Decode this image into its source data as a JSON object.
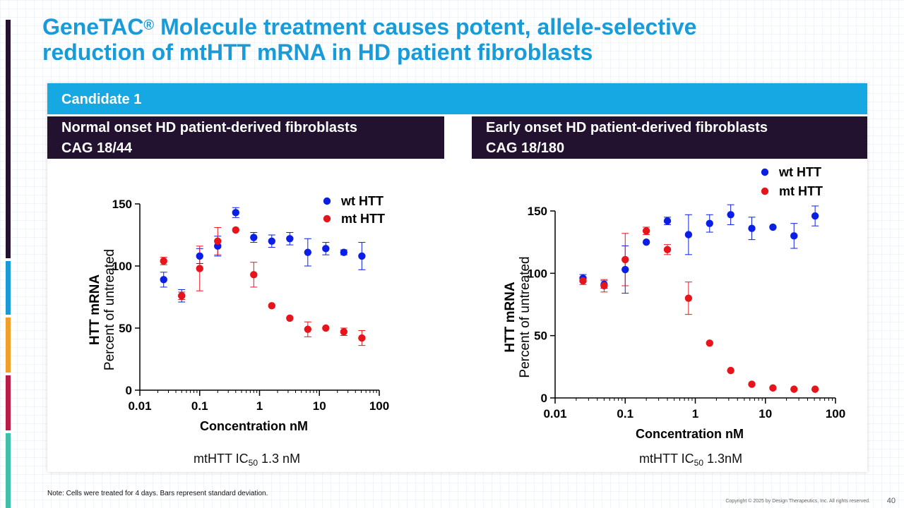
{
  "slide": {
    "title_line1_prefix": "GeneTAC",
    "title_registered": "®",
    "title_line1_suffix": " Molecule treatment causes potent, allele-selective",
    "title_line2": "reduction of mtHTT mRNA in HD patient fibroblasts",
    "candidate_label": "Candidate 1",
    "footnote": "Note: Cells were treated for 4 days. Bars represent standard deviation.",
    "copyright": "Copyright © 2025 by Design Therapeutics, Inc. All rights reserved.",
    "page_number": "40",
    "accent_colors": [
      "#22112f",
      "#1a9ad6",
      "#f0a028",
      "#b81c47",
      "#40c0a8"
    ]
  },
  "panels": [
    {
      "header_line1": "Normal onset HD patient-derived fibroblasts",
      "header_line2": "CAG 18/44",
      "ic50_prefix": "mtHTT IC",
      "ic50_sub": "50",
      "ic50_suffix": " 1.3 nM"
    },
    {
      "header_line1": "Early onset HD patient-derived fibroblasts",
      "header_line2": "CAG 18/180",
      "ic50_prefix": "mtHTT IC",
      "ic50_sub": "50",
      "ic50_suffix": " 1.3nM"
    }
  ],
  "chart_data": [
    {
      "type": "scatter",
      "x_scale": "log",
      "xlim": [
        0.01,
        100
      ],
      "ylim": [
        0,
        150
      ],
      "x_ticks": [
        0.01,
        0.1,
        1,
        10,
        100
      ],
      "x_tick_labels": [
        "0.01",
        "0.1",
        "1",
        "10",
        "100"
      ],
      "y_ticks": [
        0,
        50,
        100,
        150
      ],
      "y_tick_labels": [
        "0",
        "50",
        "100",
        "150"
      ],
      "xlabel": "Concentration nM",
      "ylabel_line1": "HTT mRNA",
      "ylabel_line2": "Percent of untreated",
      "legend_position": "top-right",
      "series": [
        {
          "name": "wt HTT",
          "color": "#0a1ee6",
          "x": [
            0.025,
            0.05,
            0.1,
            0.2,
            0.4,
            0.8,
            1.6,
            3.2,
            6.4,
            12.8,
            25.6,
            51.2
          ],
          "y": [
            89,
            76,
            108,
            116,
            143,
            123,
            120,
            122,
            111,
            114,
            111,
            108
          ],
          "sd": [
            6,
            5,
            6,
            8,
            4,
            4,
            5,
            5,
            11,
            5,
            2,
            11
          ]
        },
        {
          "name": "mt HTT",
          "color": "#e8141c",
          "x": [
            0.025,
            0.05,
            0.1,
            0.2,
            0.4,
            0.8,
            1.6,
            3.2,
            6.4,
            12.8,
            25.6,
            51.2
          ],
          "y": [
            104,
            76,
            98,
            120,
            129,
            93,
            68,
            58,
            49,
            50,
            47,
            42
          ],
          "sd": [
            3,
            3,
            18,
            11,
            1,
            10,
            1,
            1,
            6,
            1,
            3,
            6
          ]
        }
      ]
    },
    {
      "type": "scatter",
      "x_scale": "log",
      "xlim": [
        0.01,
        100
      ],
      "ylim": [
        0,
        150
      ],
      "x_ticks": [
        0.01,
        0.1,
        1,
        10,
        100
      ],
      "x_tick_labels": [
        "0.01",
        "0.1",
        "1",
        "10",
        "100"
      ],
      "y_ticks": [
        0,
        50,
        100,
        150
      ],
      "y_tick_labels": [
        "0",
        "50",
        "100",
        "150"
      ],
      "xlabel": "Concentration nM",
      "ylabel_line1": "HTT mRNA",
      "ylabel_line2": "Percent of untreated",
      "legend_position": "top-right",
      "series": [
        {
          "name": "wt HTT",
          "color": "#0a1ee6",
          "x": [
            0.025,
            0.05,
            0.1,
            0.2,
            0.4,
            0.8,
            1.6,
            3.2,
            6.4,
            12.8,
            25.6,
            51.2
          ],
          "y": [
            96,
            91,
            103,
            125,
            142,
            131,
            140,
            147,
            136,
            137,
            130,
            146
          ],
          "sd": [
            3,
            3,
            19,
            1,
            3,
            16,
            7,
            8,
            9,
            1,
            10,
            8
          ]
        },
        {
          "name": "mt HTT",
          "color": "#e8141c",
          "x": [
            0.025,
            0.05,
            0.1,
            0.2,
            0.4,
            0.8,
            1.6,
            3.2,
            6.4,
            12.8,
            25.6,
            51.2
          ],
          "y": [
            94,
            90,
            111,
            134,
            119,
            80,
            44,
            22,
            11,
            8,
            7,
            7
          ],
          "sd": [
            3,
            5,
            21,
            3,
            4,
            13,
            1,
            1,
            1,
            1,
            1,
            1
          ]
        }
      ]
    }
  ]
}
